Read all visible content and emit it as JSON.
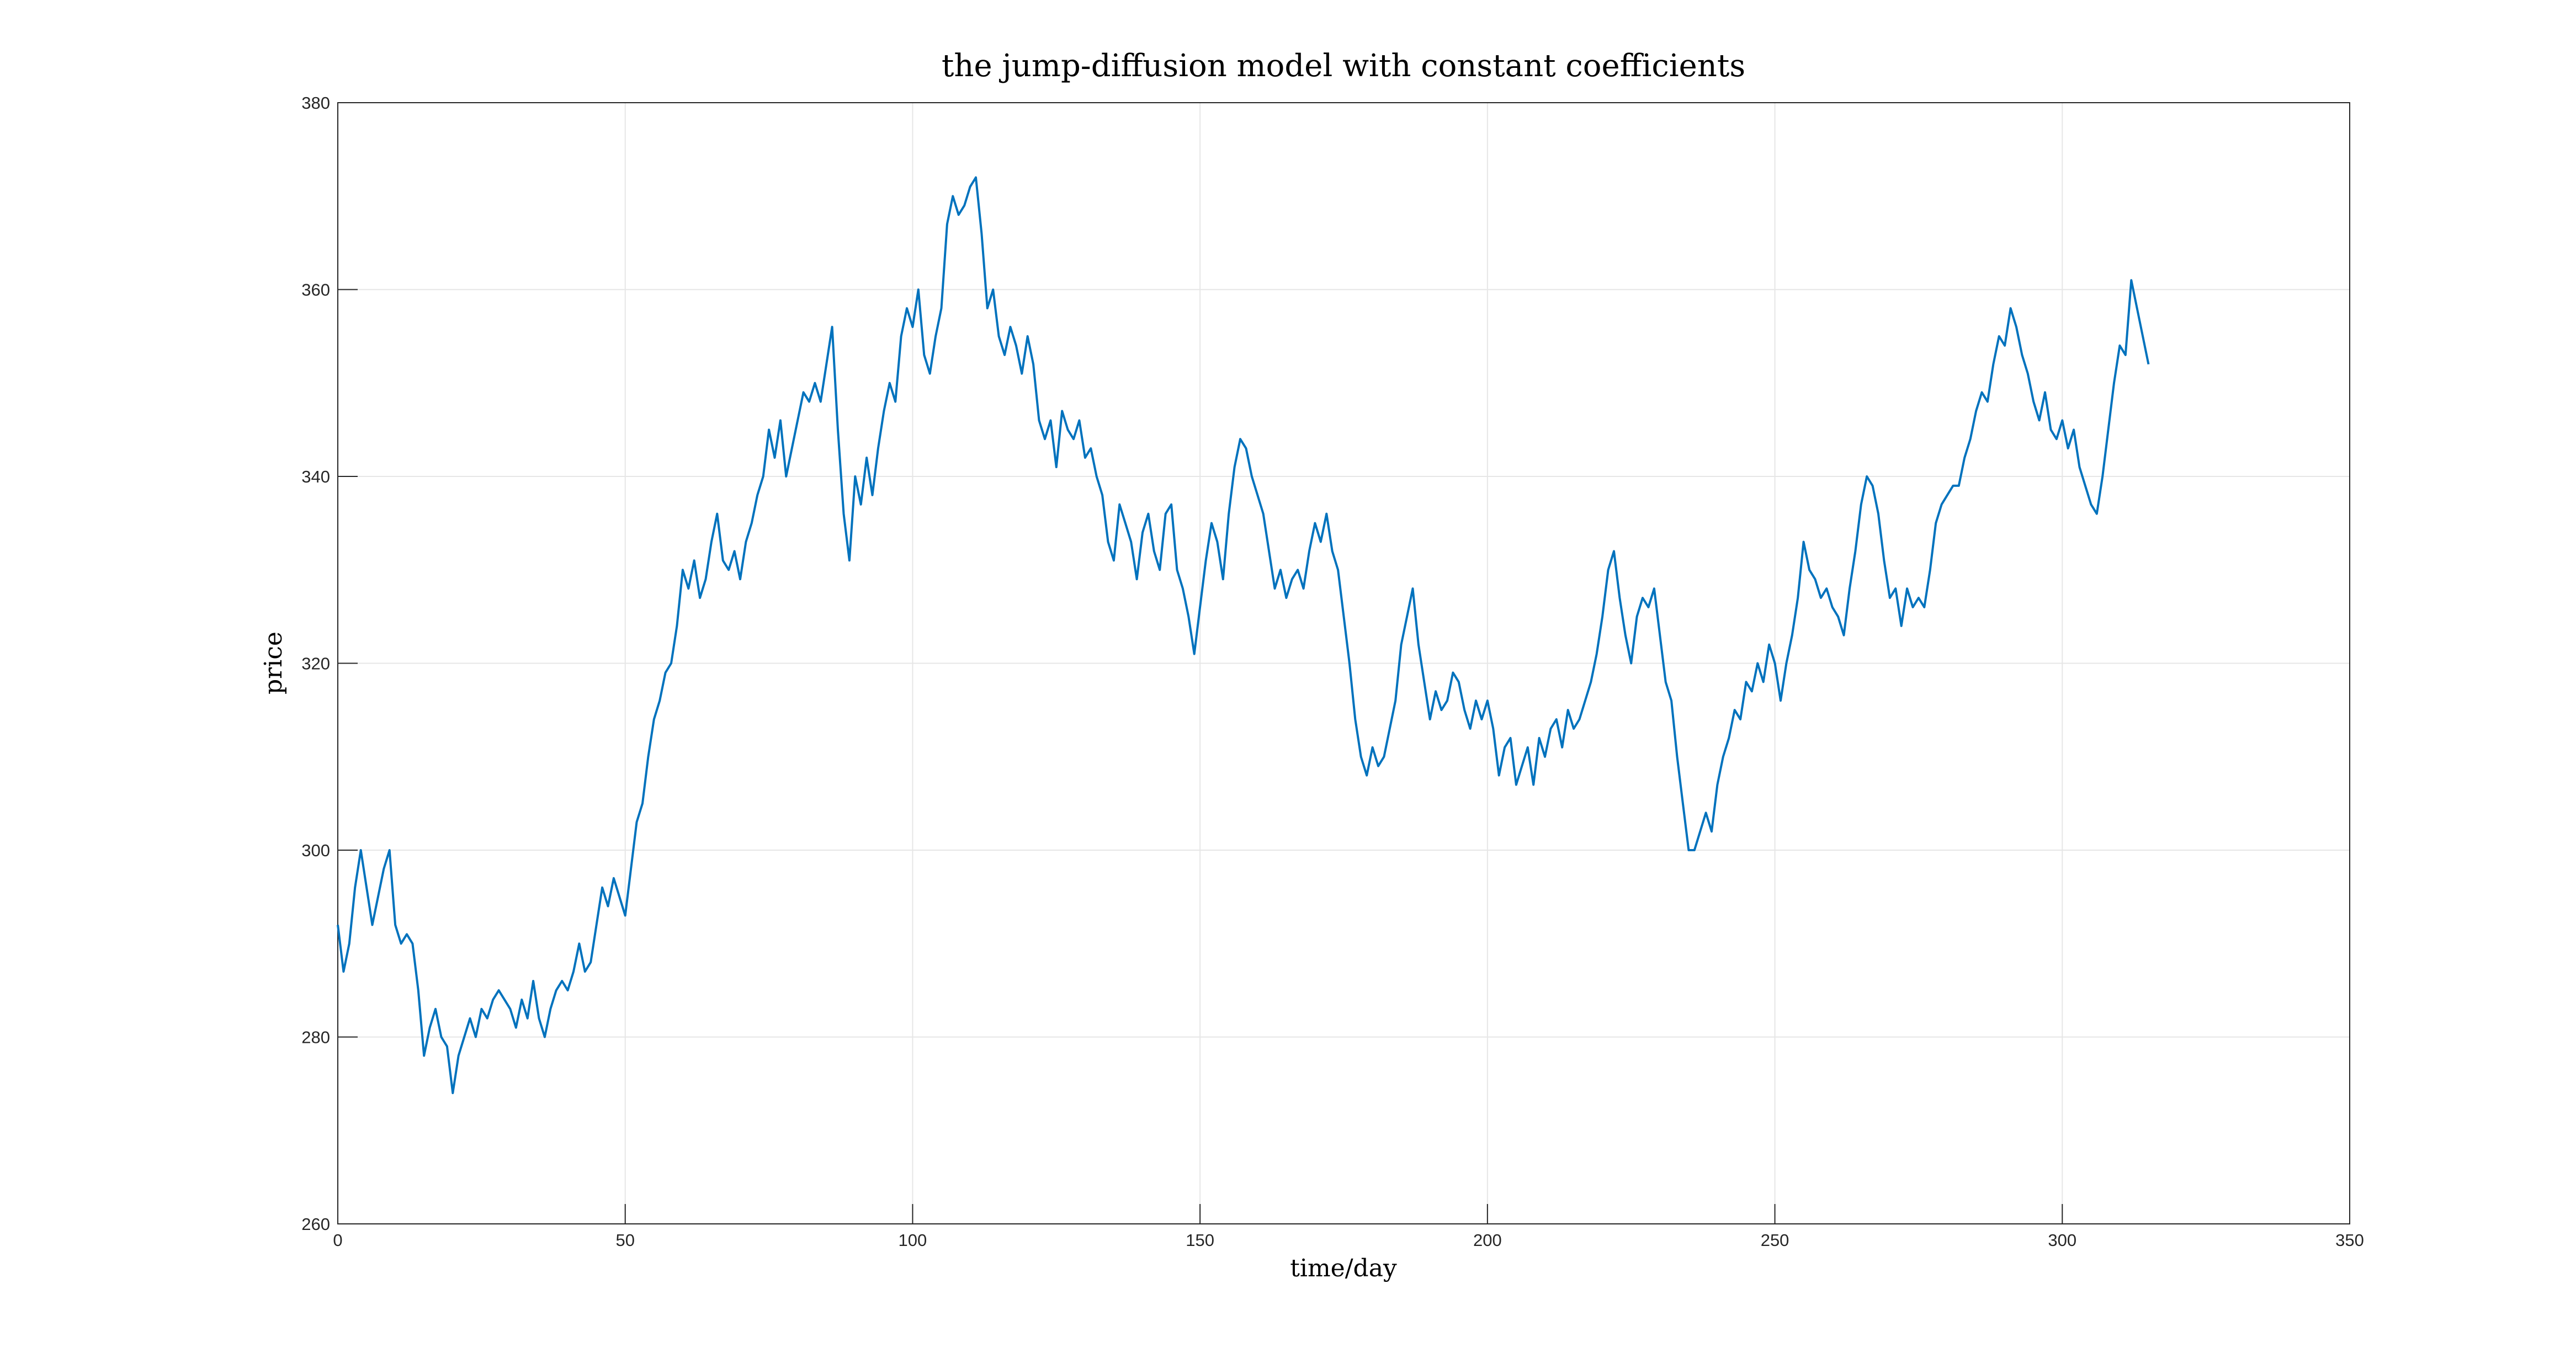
{
  "chart_data": {
    "type": "line",
    "title": "the jump-diffusion model with constant coefficients",
    "x_label": "time/day",
    "y_label": "price",
    "color": "#0072bd",
    "grid": true,
    "xlim": [
      0,
      350
    ],
    "xticks": [
      0,
      50,
      100,
      150,
      200,
      250,
      300,
      350
    ],
    "ylim": [
      260,
      380
    ],
    "yticks": [
      260,
      280,
      300,
      320,
      340,
      360,
      380
    ],
    "x": [
      0,
      1,
      2,
      3,
      4,
      5,
      6,
      7,
      8,
      9,
      10,
      11,
      12,
      13,
      14,
      15,
      16,
      17,
      18,
      19,
      20,
      21,
      22,
      23,
      24,
      25,
      26,
      27,
      28,
      29,
      30,
      31,
      32,
      33,
      34,
      35,
      36,
      37,
      38,
      39,
      40,
      41,
      42,
      43,
      44,
      45,
      46,
      47,
      48,
      49,
      50,
      51,
      52,
      53,
      54,
      55,
      56,
      57,
      58,
      59,
      60,
      61,
      62,
      63,
      64,
      65,
      66,
      67,
      68,
      69,
      70,
      71,
      72,
      73,
      74,
      75,
      76,
      77,
      78,
      79,
      80,
      81,
      82,
      83,
      84,
      85,
      86,
      87,
      88,
      89,
      90,
      91,
      92,
      93,
      94,
      95,
      96,
      97,
      98,
      99,
      100,
      101,
      102,
      103,
      104,
      105,
      106,
      107,
      108,
      109,
      110,
      111,
      112,
      113,
      114,
      115,
      116,
      117,
      118,
      119,
      120,
      121,
      122,
      123,
      124,
      125,
      126,
      127,
      128,
      129,
      130,
      131,
      132,
      133,
      134,
      135,
      136,
      137,
      138,
      139,
      140,
      141,
      142,
      143,
      144,
      145,
      146,
      147,
      148,
      149,
      150,
      151,
      152,
      153,
      154,
      155,
      156,
      157,
      158,
      159,
      160,
      161,
      162,
      163,
      164,
      165,
      166,
      167,
      168,
      169,
      170,
      171,
      172,
      173,
      174,
      175,
      176,
      177,
      178,
      179,
      180,
      181,
      182,
      183,
      184,
      185,
      186,
      187,
      188,
      189,
      190,
      191,
      192,
      193,
      194,
      195,
      196,
      197,
      198,
      199,
      200,
      201,
      202,
      203,
      204,
      205,
      206,
      207,
      208,
      209,
      210,
      211,
      212,
      213,
      214,
      215,
      216,
      217,
      218,
      219,
      220,
      221,
      222,
      223,
      224,
      225,
      226,
      227,
      228,
      229,
      230,
      231,
      232,
      233,
      234,
      235,
      236,
      237,
      238,
      239,
      240,
      241,
      242,
      243,
      244,
      245,
      246,
      247,
      248,
      249,
      250,
      251,
      252,
      253,
      254,
      255,
      256,
      257,
      258,
      259,
      260,
      261,
      262,
      263,
      264,
      265,
      266,
      267,
      268,
      269,
      270,
      271,
      272,
      273,
      274,
      275,
      276,
      277,
      278,
      279,
      280,
      281,
      282,
      283,
      284,
      285,
      286,
      287,
      288,
      289,
      290,
      291,
      292,
      293,
      294,
      295,
      296,
      297,
      298,
      299,
      300,
      301,
      302,
      303,
      304,
      305,
      306,
      307,
      308,
      309,
      310,
      311,
      312,
      313,
      314,
      315
    ],
    "values": [
      292,
      287,
      290,
      296,
      300,
      296,
      292,
      295,
      298,
      300,
      292,
      290,
      291,
      290,
      285,
      278,
      281,
      283,
      280,
      279,
      274,
      278,
      280,
      282,
      280,
      283,
      282,
      284,
      285,
      284,
      283,
      281,
      284,
      282,
      286,
      282,
      280,
      283,
      285,
      286,
      285,
      287,
      290,
      287,
      288,
      292,
      296,
      294,
      297,
      295,
      293,
      298,
      303,
      305,
      310,
      314,
      316,
      319,
      320,
      324,
      330,
      328,
      331,
      327,
      329,
      333,
      336,
      331,
      330,
      332,
      329,
      333,
      335,
      338,
      340,
      345,
      342,
      346,
      340,
      343,
      346,
      349,
      348,
      350,
      348,
      352,
      356,
      345,
      336,
      331,
      340,
      337,
      342,
      338,
      343,
      347,
      350,
      348,
      355,
      358,
      356,
      360,
      353,
      351,
      355,
      358,
      367,
      370,
      368,
      369,
      371,
      372,
      366,
      358,
      360,
      355,
      353,
      356,
      354,
      351,
      355,
      352,
      346,
      344,
      346,
      341,
      347,
      345,
      344,
      346,
      342,
      343,
      340,
      338,
      333,
      331,
      337,
      335,
      333,
      329,
      334,
      336,
      332,
      330,
      336,
      337,
      330,
      328,
      325,
      321,
      326,
      331,
      335,
      333,
      329,
      336,
      341,
      344,
      343,
      340,
      338,
      336,
      332,
      328,
      330,
      327,
      329,
      330,
      328,
      332,
      335,
      333,
      336,
      332,
      330,
      325,
      320,
      314,
      310,
      308,
      311,
      309,
      310,
      313,
      316,
      322,
      325,
      328,
      322,
      318,
      314,
      317,
      315,
      316,
      319,
      318,
      315,
      313,
      316,
      314,
      316,
      313,
      308,
      311,
      312,
      307,
      309,
      311,
      307,
      312,
      310,
      313,
      314,
      311,
      315,
      313,
      314,
      316,
      318,
      321,
      325,
      330,
      332,
      327,
      323,
      320,
      325,
      327,
      326,
      328,
      323,
      318,
      316,
      310,
      305,
      300,
      300,
      302,
      304,
      302,
      307,
      310,
      312,
      315,
      314,
      318,
      317,
      320,
      318,
      322,
      320,
      316,
      320,
      323,
      327,
      333,
      330,
      329,
      327,
      328,
      326,
      325,
      323,
      328,
      332,
      337,
      340,
      339,
      336,
      331,
      327,
      328,
      324,
      328,
      326,
      327,
      326,
      330,
      335,
      337,
      338,
      339,
      339,
      342,
      344,
      347,
      349,
      348,
      352,
      355,
      354,
      358,
      356,
      353,
      351,
      348,
      346,
      349,
      345,
      344,
      346,
      343,
      345,
      341,
      339,
      337,
      336,
      340,
      345,
      350,
      354,
      353,
      361,
      358,
      355,
      352
    ]
  }
}
